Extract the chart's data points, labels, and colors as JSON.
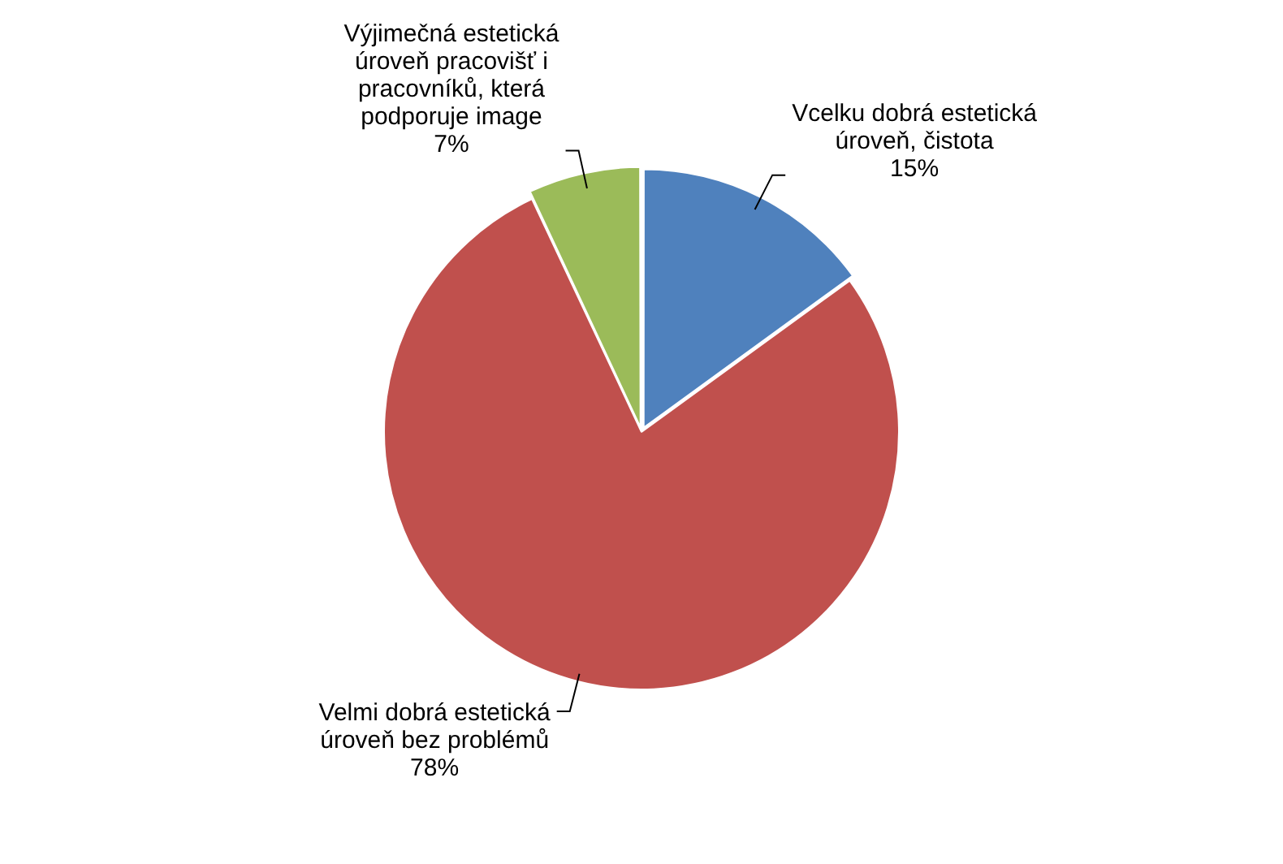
{
  "chart_data": {
    "type": "pie",
    "categories": [
      "Vcelku dobrá estetická úroveň, čistota",
      "Velmi dobrá estetická úroveň bez problémů",
      "Výjimečná estetická úroveň pracovišť i pracovníků, která podporuje image"
    ],
    "values": [
      15,
      78,
      7
    ],
    "colors": [
      "#4f81bd",
      "#c0504d",
      "#9bbb59"
    ],
    "value_labels": [
      "15%",
      "78%",
      "7%"
    ],
    "legend": false
  }
}
